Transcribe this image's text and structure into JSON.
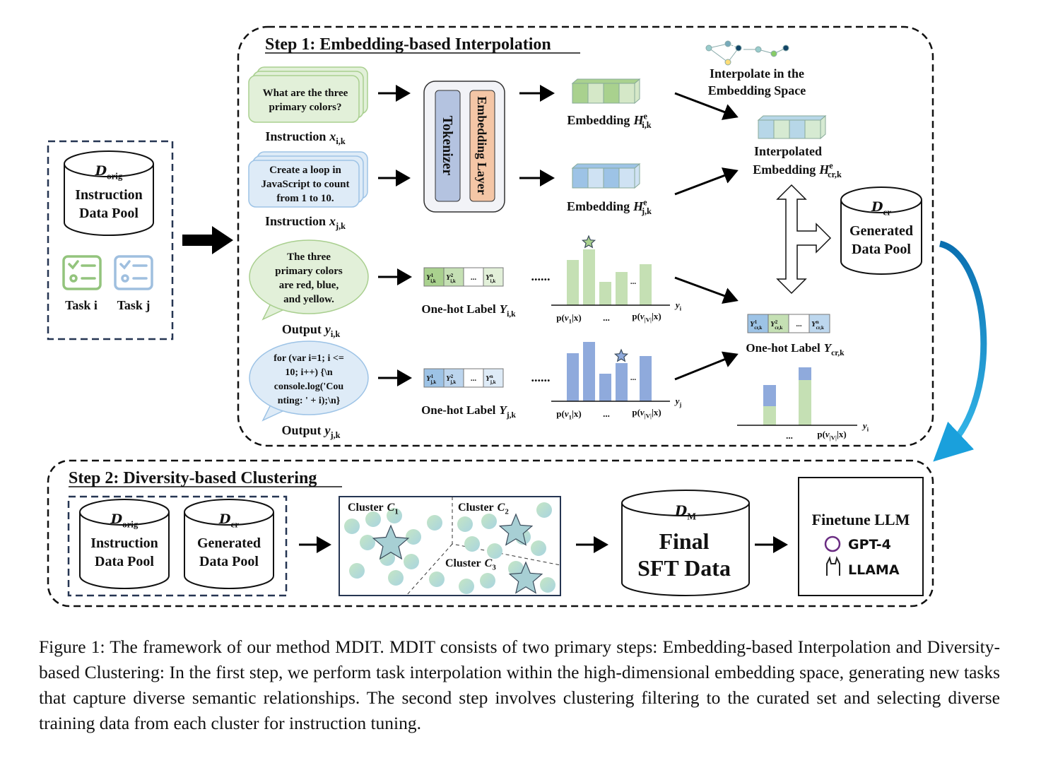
{
  "left": {
    "pool": {
      "symbol": "D",
      "sub": "orig",
      "lines": [
        "Instruction",
        "Data Pool"
      ]
    },
    "tasks": [
      "Task i",
      "Task j"
    ]
  },
  "step1": {
    "title": "Step 1: Embedding-based Interpolation",
    "instructions": [
      {
        "lines": [
          "What are the three",
          "primary colors?"
        ],
        "label": "Instruction",
        "var": "x",
        "sub": "i,k"
      },
      {
        "lines": [
          "Create a loop in",
          "JavaScript to count",
          "from 1 to 10."
        ],
        "label": "Instruction",
        "var": "x",
        "sub": "j,k"
      }
    ],
    "tokenizer": "Tokenizer",
    "embedding_layer": "Embedding Layer",
    "embeddings": [
      {
        "label": "Embedding",
        "var": "H",
        "sup": "e",
        "sub": "i,k"
      },
      {
        "label": "Embedding",
        "var": "H",
        "sup": "e",
        "sub": "j,k"
      }
    ],
    "interpolate_caption": [
      "Interpolate in the",
      "Embedding Space"
    ],
    "interpolated": {
      "line": "Interpolated",
      "label": "Embedding",
      "var": "H",
      "sup": "e",
      "sub": "cr,k"
    },
    "generated_pool": {
      "symbol": "D",
      "sub": "cr",
      "lines": [
        "Generated",
        "Data Pool"
      ]
    },
    "outputs": [
      {
        "lines": [
          "The three",
          "primary colors",
          "are red, blue,",
          "and yellow."
        ],
        "label": "Output",
        "var": "y",
        "sub": "i,k"
      },
      {
        "lines": [
          "for (var i=1; i <=",
          "10; i++) {\\n",
          "console.log('Cou",
          "nting: ' + i);\\n}"
        ],
        "label": "Output",
        "var": "y",
        "sub": "j,k"
      }
    ],
    "onehots": [
      {
        "var": "Y",
        "sub": "i,k",
        "sups": [
          "1",
          "2",
          "n"
        ],
        "ellipsis": "...",
        "caption": {
          "label": "One-hot Label",
          "var": "Y",
          "sub": "i,k"
        }
      },
      {
        "var": "Y",
        "sub": "j,k",
        "sups": [
          "1",
          "2",
          "n"
        ],
        "ellipsis": "...",
        "caption": {
          "label": "One-hot Label",
          "var": "Y",
          "sub": "j,k"
        }
      }
    ],
    "dots": "......",
    "charts": [
      {
        "x_labels": [
          {
            "pre": "p(",
            "var": "v",
            "sub": "1",
            "post": "|x)"
          },
          "...",
          {
            "pre": "p(",
            "var": "v",
            "sub": "|V|",
            "post": "|x)"
          }
        ],
        "inner": "...",
        "axis": {
          "var": "y",
          "sub": "i"
        }
      },
      {
        "x_labels": [
          {
            "pre": "p(",
            "var": "v",
            "sub": "1",
            "post": "|x)"
          },
          "...",
          {
            "pre": "p(",
            "var": "v",
            "sub": "|V|",
            "post": "|x)"
          }
        ],
        "inner": "...",
        "axis": {
          "var": "y",
          "sub": "j"
        }
      }
    ],
    "onehot_cr": {
      "var": "Y",
      "sub": "cr,k",
      "sups": [
        "1",
        "2",
        "n"
      ],
      "ellipsis": "...",
      "caption": {
        "label": "One-hot Label",
        "var": "Y",
        "sub": "cr,k"
      }
    },
    "combined": {
      "x_labels": [
        "...",
        {
          "pre": "p(",
          "var": "v",
          "sub": "|V|",
          "post": "|x)"
        }
      ],
      "axis": {
        "var": "y",
        "sub": "i"
      }
    }
  },
  "step2": {
    "title": "Step 2: Diversity-based Clustering",
    "pools": [
      {
        "symbol": "D",
        "sub": "orig",
        "lines": [
          "Instruction",
          "Data Pool"
        ]
      },
      {
        "symbol": "D",
        "sub": "cr",
        "lines": [
          "Generated",
          "Data Pool"
        ]
      }
    ],
    "clusters": [
      {
        "label": "Cluster",
        "var": "C",
        "sub": "1"
      },
      {
        "label": "Cluster",
        "var": "C",
        "sub": "2"
      },
      {
        "label": "Cluster",
        "var": "C",
        "sub": "3"
      }
    ],
    "final": {
      "symbol": "D",
      "sub": "M",
      "lines": [
        "Final",
        "SFT Data"
      ]
    },
    "finetune": {
      "title": "Finetune LLM",
      "models": [
        "GPT-4",
        "LLAMA"
      ]
    }
  },
  "caption": "Figure 1: The framework of our method MDIT. MDIT consists of two primary steps: Embedding-based Interpolation and Diversity-based Clustering: In the first step, we perform task interpolation within the high-dimensional embedding space, generating new tasks that capture diverse semantic relationships. The second step involves clustering filtering to the curated set and selecting diverse training data from each cluster for instruction tuning."
}
